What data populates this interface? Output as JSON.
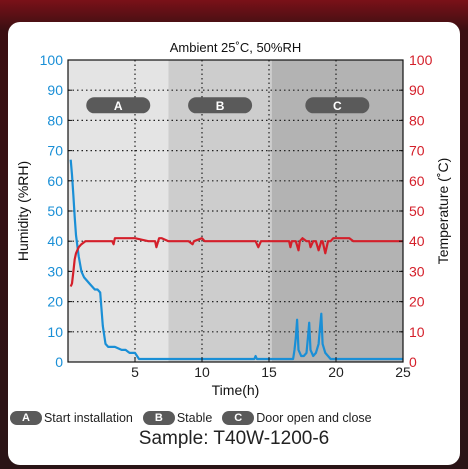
{
  "chart_data": {
    "type": "line",
    "title": "Ambient 25˚C, 50%RH",
    "xlabel": "Time(h)",
    "ylabel_left": "Humidity (%RH)",
    "ylabel_right": "Temperature (˚C)",
    "xlim": [
      0,
      25
    ],
    "ylim_left": [
      0,
      100
    ],
    "ylim_right": [
      0,
      100
    ],
    "x_ticks": [
      5,
      10,
      15,
      20,
      25
    ],
    "y_ticks": [
      0,
      10,
      20,
      30,
      40,
      50,
      60,
      70,
      80,
      90,
      100
    ],
    "grid": "dotted vertical and horizontal",
    "regions": [
      {
        "label": "A",
        "x_start": 0,
        "x_end": 7.5,
        "shade": "#e4e4e4"
      },
      {
        "label": "B",
        "x_start": 7.5,
        "x_end": 15.2,
        "shade": "#cdcdcd"
      },
      {
        "label": "C",
        "x_start": 15.2,
        "x_end": 25,
        "shade": "#b3b3b3"
      }
    ],
    "series": [
      {
        "name": "Humidity (%RH)",
        "axis": "left",
        "color": "#1a8fd6",
        "x": [
          0.2,
          0.3,
          0.4,
          0.5,
          0.6,
          0.8,
          1.0,
          1.2,
          1.4,
          1.6,
          1.8,
          2.0,
          2.2,
          2.4,
          2.6,
          2.8,
          3.0,
          3.2,
          3.5,
          4.0,
          4.3,
          4.6,
          5.0,
          5.3,
          5.6,
          6.0,
          10.0,
          13.9,
          14.0,
          14.1,
          15.0,
          16.8,
          16.9,
          17.0,
          17.1,
          17.2,
          17.4,
          17.6,
          17.8,
          17.9,
          18.0,
          18.1,
          18.3,
          18.5,
          18.7,
          18.8,
          18.9,
          19.0,
          19.2,
          19.4,
          19.6,
          20.0,
          22.0,
          25.0
        ],
        "y": [
          67,
          62,
          55,
          48,
          42,
          35,
          30,
          28,
          27,
          26,
          25,
          24,
          24,
          23,
          12,
          6,
          5,
          5,
          5,
          4,
          4,
          3,
          3,
          1,
          1,
          1,
          1,
          1,
          2,
          1,
          1,
          1,
          4,
          8,
          14,
          4,
          2,
          2,
          3,
          8,
          13,
          4,
          2,
          3,
          6,
          11,
          16,
          6,
          3,
          2,
          1,
          1,
          1,
          1
        ]
      },
      {
        "name": "Temperature (˚C)",
        "axis": "right",
        "color": "#d41f2a",
        "x": [
          0.2,
          0.3,
          0.4,
          0.5,
          0.6,
          0.8,
          1.0,
          1.3,
          1.6,
          2.0,
          2.5,
          3.0,
          3.3,
          3.4,
          3.5,
          4.0,
          5.0,
          6.0,
          6.5,
          6.6,
          6.8,
          7.0,
          7.5,
          8.0,
          9.0,
          9.3,
          9.4,
          10.0,
          10.2,
          10.4,
          11.0,
          12.0,
          13.0,
          14.0,
          14.2,
          14.4,
          15.0,
          16.0,
          16.5,
          16.6,
          16.7,
          17.0,
          17.2,
          17.3,
          17.5,
          17.8,
          18.0,
          18.1,
          18.3,
          18.5,
          18.7,
          18.9,
          19.0,
          19.2,
          19.4,
          19.6,
          19.8,
          20.0,
          21.0,
          21.3,
          22.0,
          23.0,
          25.0
        ],
        "y": [
          25,
          26,
          30,
          34,
          36,
          38,
          39,
          40,
          40,
          40,
          40,
          40,
          40,
          39,
          41,
          41,
          41,
          40,
          40,
          38,
          41,
          41,
          40,
          40,
          40,
          39,
          40,
          41,
          40,
          40,
          40,
          40,
          40,
          40,
          38,
          40,
          40,
          40,
          40,
          38,
          40,
          40,
          37,
          40,
          41,
          40,
          40,
          38,
          40,
          40,
          37,
          40,
          40,
          36,
          40,
          40,
          41,
          41,
          41,
          40,
          40,
          40,
          40
        ]
      }
    ]
  },
  "legend": {
    "items": [
      {
        "badge": "A",
        "label": "Start installation"
      },
      {
        "badge": "B",
        "label": "Stable"
      },
      {
        "badge": "C",
        "label": "Door open and close"
      }
    ]
  },
  "sample_label": "Sample: T40W-1200-6",
  "colors": {
    "humidity_axis": "#1a8fd6",
    "temperature_axis": "#d41f2a",
    "badge": "#5a5a5a"
  }
}
